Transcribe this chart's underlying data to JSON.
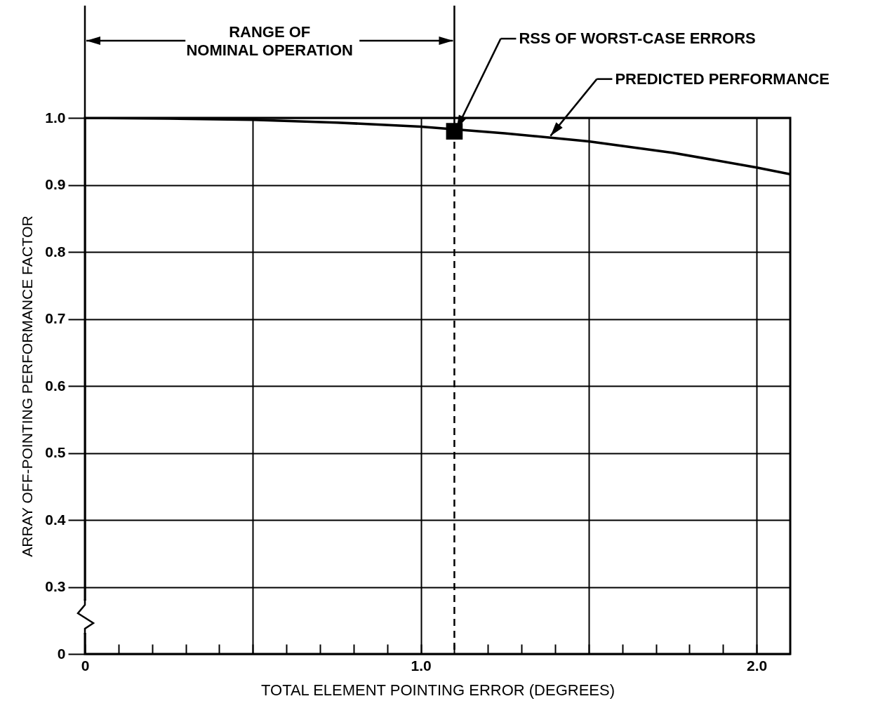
{
  "chart_data": {
    "type": "line",
    "xlabel": "TOTAL ELEMENT POINTING ERROR (DEGREES)",
    "ylabel": "ARRAY OFF-POINTING PERFORMANCE FACTOR",
    "xlim": [
      0,
      2.1
    ],
    "ylim": [
      0.2,
      1.0
    ],
    "xticks": [
      {
        "value": 0,
        "label": "0"
      },
      {
        "value": 0.1,
        "label": null
      },
      {
        "value": 0.2,
        "label": null
      },
      {
        "value": 0.3,
        "label": null
      },
      {
        "value": 0.4,
        "label": null
      },
      {
        "value": 0.5,
        "label": null
      },
      {
        "value": 0.6,
        "label": null
      },
      {
        "value": 0.7,
        "label": null
      },
      {
        "value": 0.8,
        "label": null
      },
      {
        "value": 0.9,
        "label": null
      },
      {
        "value": 1.0,
        "label": "1.0"
      },
      {
        "value": 1.1,
        "label": null
      },
      {
        "value": 1.2,
        "label": null
      },
      {
        "value": 1.3,
        "label": null
      },
      {
        "value": 1.4,
        "label": null
      },
      {
        "value": 1.5,
        "label": null
      },
      {
        "value": 1.6,
        "label": null
      },
      {
        "value": 1.7,
        "label": null
      },
      {
        "value": 1.8,
        "label": null
      },
      {
        "value": 1.9,
        "label": null
      },
      {
        "value": 2.0,
        "label": "2.0"
      }
    ],
    "yticks": [
      {
        "value": 0.2,
        "label": "0"
      },
      0.3,
      0.4,
      0.5,
      0.6,
      0.7,
      0.8,
      0.9,
      {
        "value": 1.0,
        "label": "1.0"
      }
    ],
    "grid": true,
    "series": [
      {
        "color": "#000000",
        "x": [
          0,
          0.25,
          0.5,
          0.75,
          1.0,
          1.25,
          1.5,
          1.75,
          2.0,
          2.1
        ],
        "values": [
          1.0,
          0.999,
          0.997,
          0.993,
          0.987,
          0.977,
          0.965,
          0.948,
          0.926,
          0.916
        ]
      },
      {
        "type": "scatter",
        "marker": "square",
        "color": "#000000",
        "x": [
          1.1
        ],
        "values": [
          0.98
        ]
      }
    ],
    "ref_lines": [
      {
        "axis": "x",
        "value": 1.1,
        "line_style": "dashed",
        "color": "#000000"
      }
    ],
    "annotations": [
      "RANGE OF\nNOMINAL OPERATION",
      {
        "text": "RSS OF WORST-CASE ERRORS",
        "x": 1.1,
        "y": 0.98
      },
      {
        "text": "PREDICTED PERFORMANCE",
        "x": 1.38,
        "y": 0.97
      }
    ]
  }
}
